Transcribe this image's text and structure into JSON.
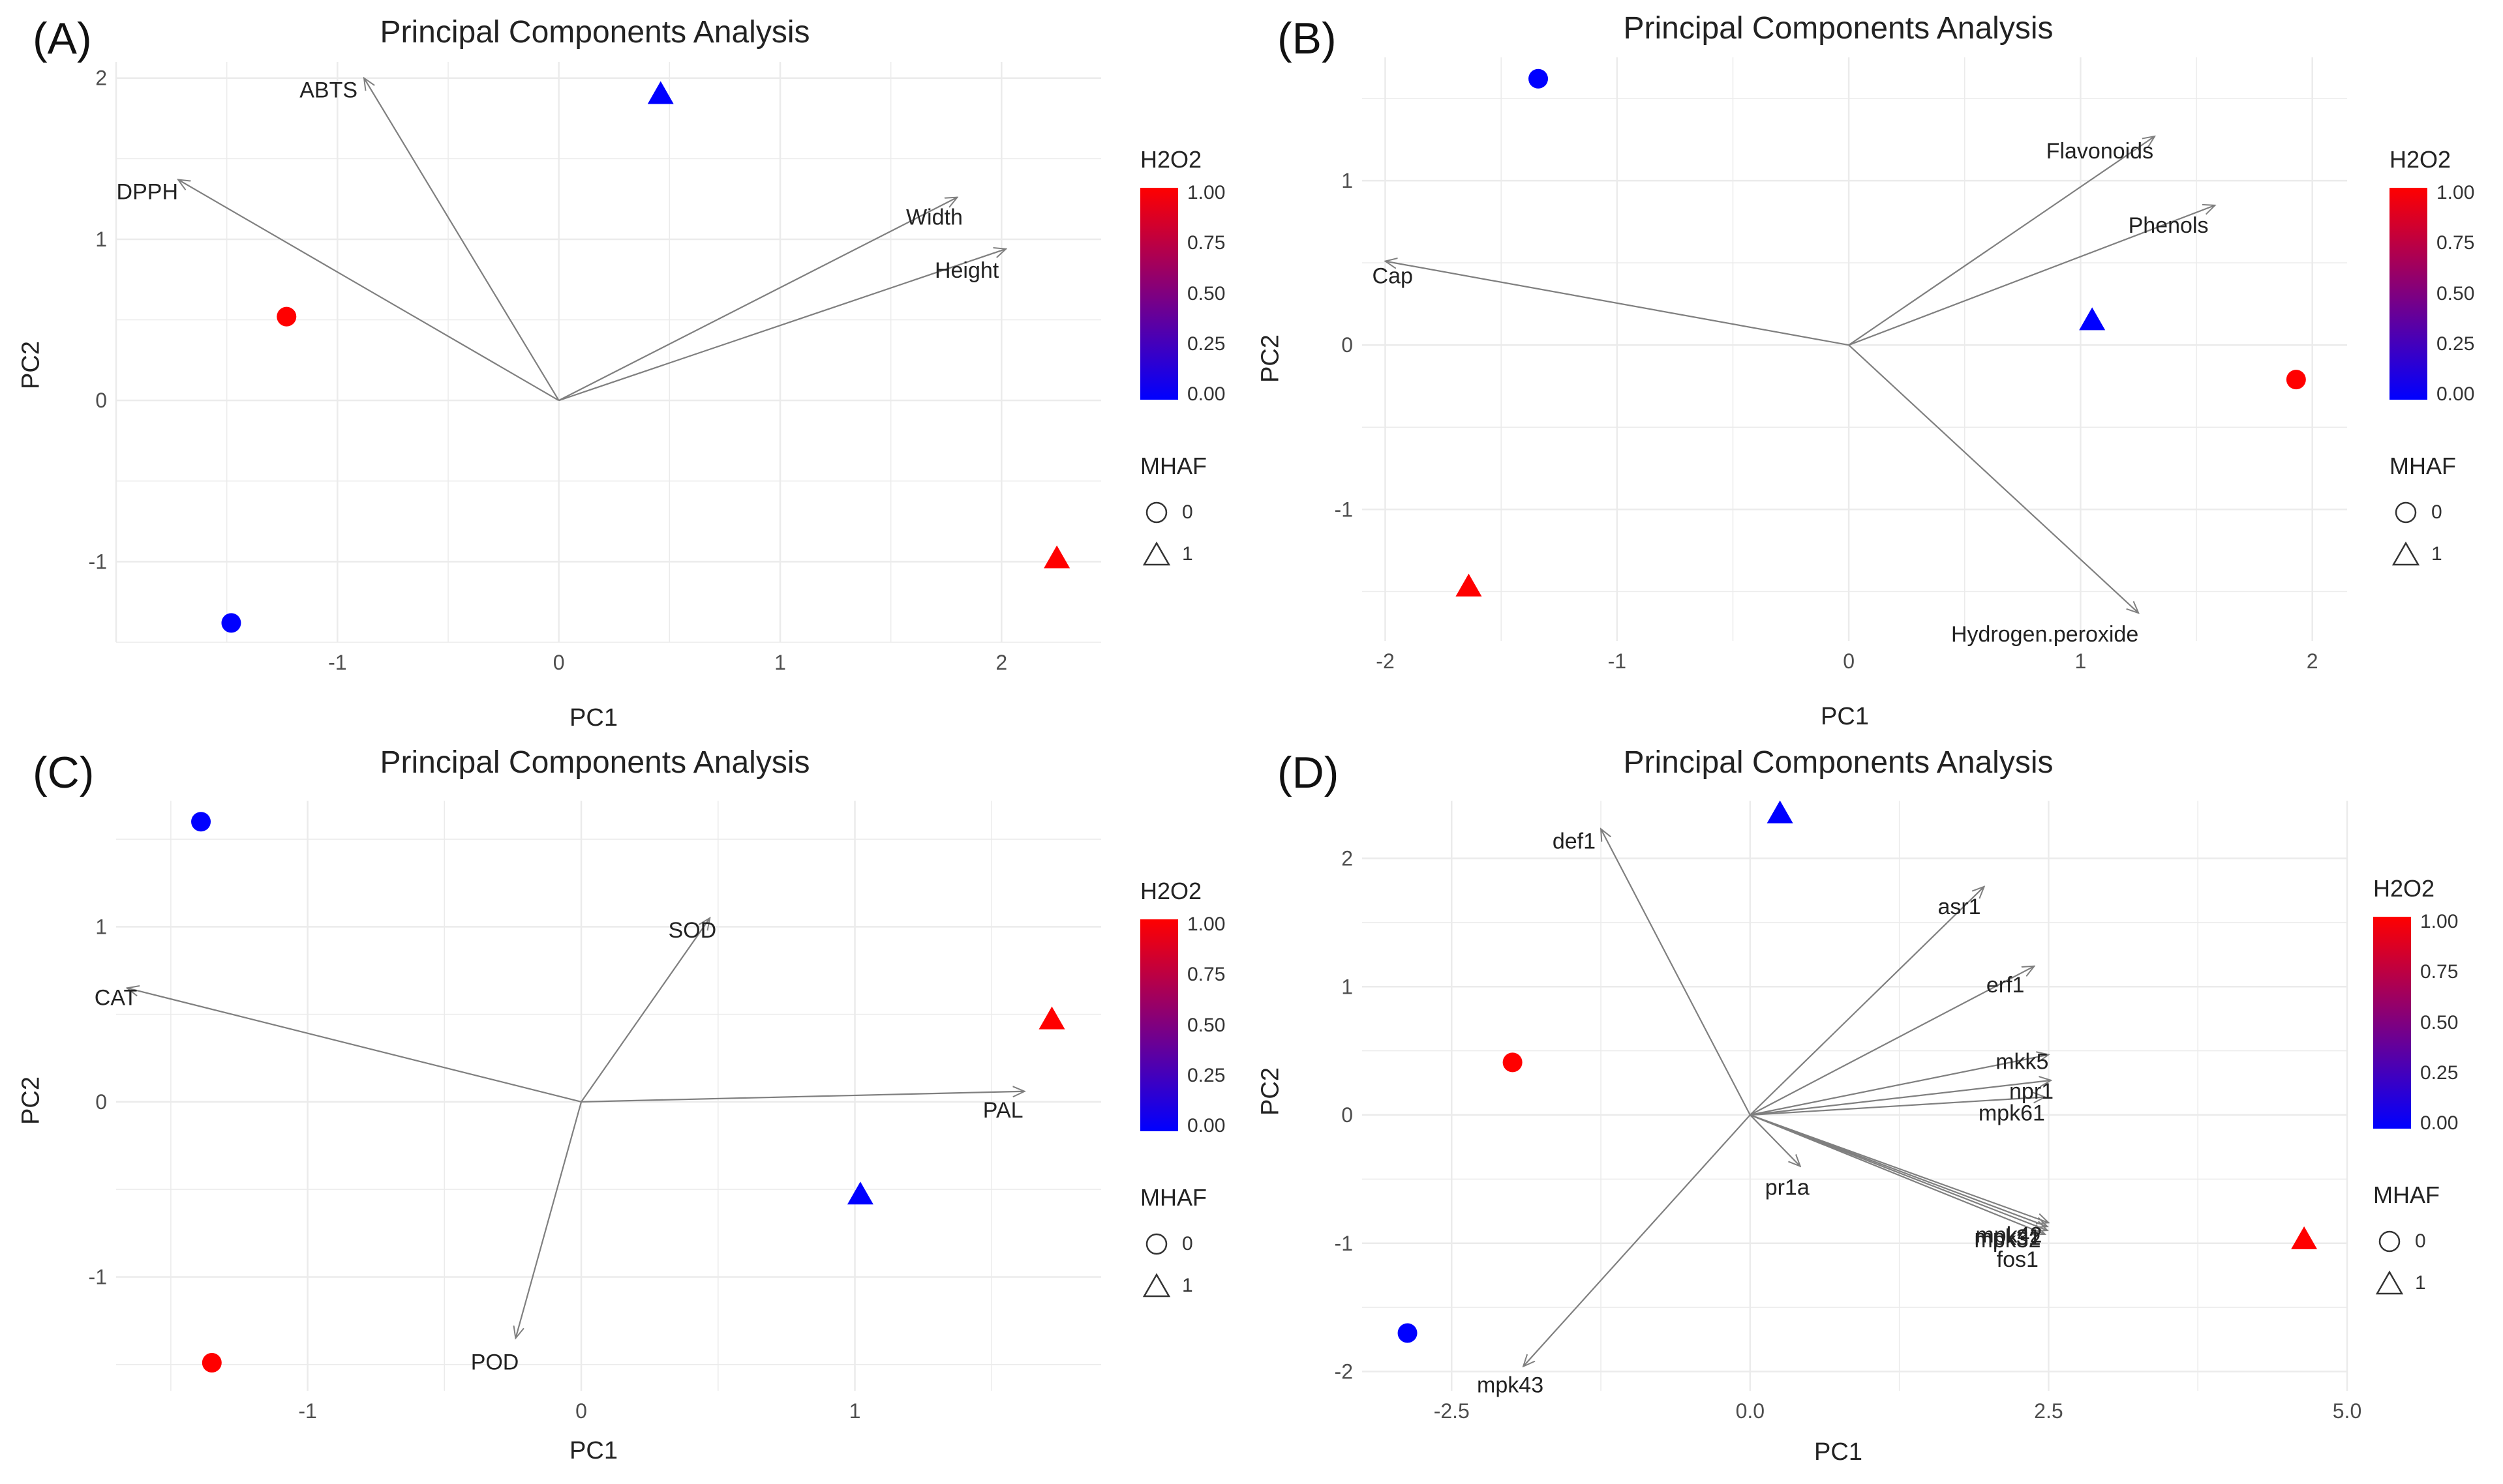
{
  "figure": {
    "legend": {
      "color_title": "H2O2",
      "color_ticks": [
        "1.00",
        "0.75",
        "0.50",
        "0.25",
        "0.00"
      ],
      "shape_title": "MHAF",
      "shape_labels": [
        "0",
        "1"
      ],
      "gradient_colors": [
        "#ff0000",
        "#0000ff"
      ]
    },
    "colors": {
      "high": "#ff0000",
      "low": "#0000ff",
      "arrow": "#7f7f7f",
      "grid": "#ebebeb"
    }
  },
  "chart_data": [
    {
      "panel": "(A)",
      "type": "scatter",
      "title": "Principal Components Analysis",
      "xlabel": "PC1",
      "ylabel": "PC2",
      "xlim": [
        -2.0,
        2.45
      ],
      "ylim": [
        -1.5,
        2.1
      ],
      "xticks": [
        "-1",
        "0",
        "1",
        "2"
      ],
      "xtick_values": [
        -1,
        0,
        1,
        2
      ],
      "yticks": [
        "-1",
        "0",
        "1",
        "2"
      ],
      "ytick_values": [
        -1,
        0,
        1,
        2
      ],
      "points": [
        {
          "x": 0.46,
          "y": 1.9,
          "h2o2": 0,
          "mhaf": 1
        },
        {
          "x": -1.23,
          "y": 0.52,
          "h2o2": 1,
          "mhaf": 0
        },
        {
          "x": -1.48,
          "y": -1.38,
          "h2o2": 0,
          "mhaf": 0
        },
        {
          "x": 2.25,
          "y": -0.98,
          "h2o2": 1,
          "mhaf": 1
        }
      ],
      "loadings": [
        {
          "label": "ABTS",
          "x": -0.88,
          "y": 2.0
        },
        {
          "label": "DPPH",
          "x": -1.72,
          "y": 1.37
        },
        {
          "label": "Width",
          "x": 1.8,
          "y": 1.26
        },
        {
          "label": "Height",
          "x": 2.02,
          "y": 0.94
        }
      ]
    },
    {
      "panel": "(B)",
      "type": "scatter",
      "title": "Principal Components Analysis",
      "xlabel": "PC1",
      "ylabel": "PC2",
      "xlim": [
        -2.1,
        2.15
      ],
      "ylim": [
        -1.8,
        1.75
      ],
      "xticks": [
        "-2",
        "-1",
        "0",
        "1",
        "2"
      ],
      "xtick_values": [
        -2,
        -1,
        0,
        1,
        2
      ],
      "yticks": [
        "-1",
        "0",
        "1"
      ],
      "ytick_values": [
        -1,
        0,
        1
      ],
      "points": [
        {
          "x": -1.34,
          "y": 1.62,
          "h2o2": 0,
          "mhaf": 0
        },
        {
          "x": 1.05,
          "y": 0.15,
          "h2o2": 0,
          "mhaf": 1
        },
        {
          "x": 1.93,
          "y": -0.21,
          "h2o2": 1,
          "mhaf": 0
        },
        {
          "x": -1.64,
          "y": -1.47,
          "h2o2": 1,
          "mhaf": 1
        }
      ],
      "loadings": [
        {
          "label": "Flavonoids",
          "x": 1.32,
          "y": 1.27
        },
        {
          "label": "Phenols",
          "x": 1.58,
          "y": 0.85
        },
        {
          "label": "Cap",
          "x": -2.0,
          "y": 0.51
        },
        {
          "label": "Hydrogen.peroxide",
          "x": 1.25,
          "y": -1.63
        }
      ]
    },
    {
      "panel": "(C)",
      "type": "scatter",
      "title": "Principal Components Analysis",
      "xlabel": "PC1",
      "ylabel": "PC2",
      "xlim": [
        -1.7,
        1.9
      ],
      "ylim": [
        -1.65,
        1.72
      ],
      "xticks": [
        "-1",
        "0",
        "1"
      ],
      "xtick_values": [
        -1,
        0,
        1
      ],
      "yticks": [
        "-1",
        "0",
        "1"
      ],
      "ytick_values": [
        -1,
        0,
        1
      ],
      "points": [
        {
          "x": -1.39,
          "y": 1.6,
          "h2o2": 0,
          "mhaf": 0
        },
        {
          "x": 1.72,
          "y": 0.47,
          "h2o2": 1,
          "mhaf": 1
        },
        {
          "x": 1.02,
          "y": -0.53,
          "h2o2": 0,
          "mhaf": 1
        },
        {
          "x": -1.35,
          "y": -1.49,
          "h2o2": 1,
          "mhaf": 0
        }
      ],
      "loadings": [
        {
          "label": "SOD",
          "x": 0.47,
          "y": 1.05
        },
        {
          "label": "CAT",
          "x": -1.66,
          "y": 0.65
        },
        {
          "label": "PAL",
          "x": 1.62,
          "y": 0.06
        },
        {
          "label": "POD",
          "x": -0.24,
          "y": -1.35
        }
      ]
    },
    {
      "panel": "(D)",
      "type": "scatter",
      "title": "Principal Components Analysis",
      "xlabel": "PC1",
      "ylabel": "PC2",
      "xlim": [
        -3.25,
        5.0
      ],
      "ylim": [
        -2.15,
        2.45
      ],
      "xticks": [
        "-2.5",
        "0.0",
        "2.5",
        "5.0"
      ],
      "xtick_values": [
        -2.5,
        0.0,
        2.5,
        5.0
      ],
      "yticks": [
        "-2",
        "-1",
        "0",
        "1",
        "2"
      ],
      "ytick_values": [
        -2,
        -1,
        0,
        1,
        2
      ],
      "points": [
        {
          "x": 0.25,
          "y": 2.35,
          "h2o2": 0,
          "mhaf": 1
        },
        {
          "x": -1.99,
          "y": 0.41,
          "h2o2": 1,
          "mhaf": 0
        },
        {
          "x": 4.64,
          "y": -0.97,
          "h2o2": 1,
          "mhaf": 1
        },
        {
          "x": -2.87,
          "y": -1.7,
          "h2o2": 0,
          "mhaf": 0
        }
      ],
      "loadings": [
        {
          "label": "def1",
          "x": -1.25,
          "y": 2.23
        },
        {
          "label": "asr1",
          "x": 1.96,
          "y": 1.78
        },
        {
          "label": "erf1",
          "x": 2.38,
          "y": 1.16
        },
        {
          "label": "mkk5",
          "x": 2.5,
          "y": 0.47
        },
        {
          "label": "npr1",
          "x": 2.52,
          "y": 0.27
        },
        {
          "label": "mpk61",
          "x": 2.47,
          "y": 0.14
        },
        {
          "label": "pr1a",
          "x": 0.42,
          "y": -0.4
        },
        {
          "label": "mpk42",
          "x": 2.5,
          "y": -0.84
        },
        {
          "label": "mpk31",
          "x": 2.49,
          "y": -0.87
        },
        {
          "label": "mpk32",
          "x": 2.49,
          "y": -0.9
        },
        {
          "label": "fos1",
          "x": 2.47,
          "y": -0.93
        },
        {
          "label": "mpk43",
          "x": -1.9,
          "y": -1.96
        }
      ],
      "overlapping_label_text": "mpkq1"
    }
  ]
}
